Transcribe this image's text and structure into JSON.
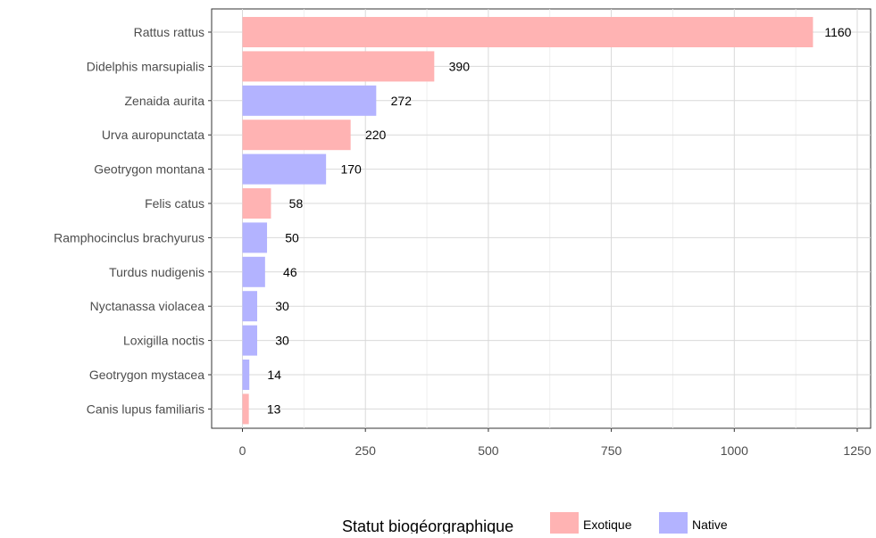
{
  "chart_data": {
    "type": "bar",
    "orientation": "horizontal",
    "categories": [
      "Rattus rattus",
      "Didelphis marsupialis",
      "Zenaida aurita",
      "Urva auropunctata",
      "Geotrygon montana",
      "Felis catus",
      "Ramphocinclus brachyurus",
      "Turdus nudigenis",
      "Nyctanassa violacea",
      "Loxigilla noctis",
      "Geotrygon mystacea",
      "Canis lupus familiaris"
    ],
    "values": [
      1160,
      390,
      272,
      220,
      170,
      58,
      50,
      46,
      30,
      30,
      14,
      13
    ],
    "data_labels": [
      "1160",
      "390",
      "272",
      "220",
      "170",
      "58",
      "50",
      "46",
      "30",
      "30",
      "14",
      "13"
    ],
    "groups": [
      "Exotique",
      "Exotique",
      "Native",
      "Exotique",
      "Native",
      "Exotique",
      "Native",
      "Native",
      "Native",
      "Native",
      "Native",
      "Exotique"
    ],
    "group_colors": {
      "Exotique": "#ffb3b3",
      "Native": "#b3b3ff"
    },
    "x_ticks": [
      0,
      250,
      500,
      750,
      1000,
      1250
    ],
    "x_tick_labels": [
      "0",
      "250",
      "500",
      "750",
      "1000",
      "1250"
    ],
    "xlim": [
      -60,
      1260
    ],
    "grid": true,
    "legend": {
      "title": "Statut biogéorgraphique",
      "position": "bottom",
      "entries": [
        {
          "label": "Exotique",
          "color": "#ffb3b3"
        },
        {
          "label": "Native",
          "color": "#b3b3ff"
        }
      ]
    },
    "xlabel": "",
    "ylabel": "",
    "title": ""
  }
}
